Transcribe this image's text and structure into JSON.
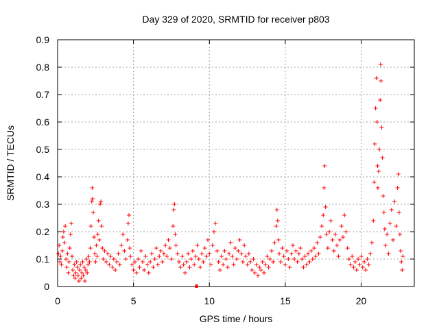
{
  "chart_data": {
    "type": "scatter",
    "title": "Day 329 of 2020, SRMTID for receiver p803",
    "xlabel": "GPS time / hours",
    "ylabel": "SRMTID / TECUs",
    "xlim": [
      0,
      23.5
    ],
    "ylim": [
      0,
      0.9
    ],
    "xticks": [
      0,
      5,
      10,
      15,
      20
    ],
    "xtick_labels": [
      "0",
      "5",
      "10",
      "15",
      "20"
    ],
    "yticks": [
      0,
      0.1,
      0.2,
      0.3,
      0.4,
      0.5,
      0.6,
      0.7,
      0.8,
      0.9
    ],
    "ytick_labels": [
      "0",
      "0.1",
      "0.2",
      "0.3",
      "0.4",
      "0.5",
      "0.6",
      "0.7",
      "0.8",
      "0.9"
    ],
    "grid": true,
    "series_color": "#ff0000",
    "marker": "+",
    "series": [
      {
        "name": "SRMTID",
        "points": [
          [
            0.05,
            0.12
          ],
          [
            0.1,
            0.15
          ],
          [
            0.15,
            0.09
          ],
          [
            0.2,
            0.11
          ],
          [
            0.25,
            0.08
          ],
          [
            0.3,
            0.13
          ],
          [
            0.35,
            0.18
          ],
          [
            0.4,
            0.2
          ],
          [
            0.45,
            0.16
          ],
          [
            0.5,
            0.22
          ],
          [
            0.55,
            0.1
          ],
          [
            0.6,
            0.07
          ],
          [
            0.65,
            0.12
          ],
          [
            0.7,
            0.05
          ],
          [
            0.75,
            0.09
          ],
          [
            0.8,
            0.14
          ],
          [
            0.85,
            0.19
          ],
          [
            0.9,
            0.23
          ],
          [
            0.95,
            0.11
          ],
          [
            1.0,
            0.06
          ],
          [
            1.05,
            0.04
          ],
          [
            1.1,
            0.08
          ],
          [
            1.15,
            0.03
          ],
          [
            1.2,
            0.05
          ],
          [
            1.25,
            0.09
          ],
          [
            1.3,
            0.07
          ],
          [
            1.35,
            0.04
          ],
          [
            1.4,
            0.02
          ],
          [
            1.45,
            0.06
          ],
          [
            1.5,
            0.08
          ],
          [
            1.55,
            0.03
          ],
          [
            1.6,
            0.05
          ],
          [
            1.65,
            0.09
          ],
          [
            1.7,
            0.04
          ],
          [
            1.75,
            0.07
          ],
          [
            1.8,
            0.02
          ],
          [
            1.85,
            0.06
          ],
          [
            1.9,
            0.1
          ],
          [
            1.95,
            0.05
          ],
          [
            2.0,
            0.08
          ],
          [
            2.05,
            0.11
          ],
          [
            2.1,
            0.09
          ],
          [
            2.15,
            0.14
          ],
          [
            2.2,
            0.22
          ],
          [
            2.25,
            0.31
          ],
          [
            2.28,
            0.36
          ],
          [
            2.3,
            0.32
          ],
          [
            2.35,
            0.27
          ],
          [
            2.4,
            0.18
          ],
          [
            2.45,
            0.12
          ],
          [
            2.5,
            0.09
          ],
          [
            2.55,
            0.15
          ],
          [
            2.6,
            0.11
          ],
          [
            2.65,
            0.19
          ],
          [
            2.7,
            0.24
          ],
          [
            2.75,
            0.17
          ],
          [
            2.8,
            0.3
          ],
          [
            2.85,
            0.31
          ],
          [
            2.9,
            0.22
          ],
          [
            2.95,
            0.14
          ],
          [
            3.0,
            0.1
          ],
          [
            3.1,
            0.13
          ],
          [
            3.2,
            0.09
          ],
          [
            3.3,
            0.12
          ],
          [
            3.4,
            0.08
          ],
          [
            3.5,
            0.11
          ],
          [
            3.6,
            0.07
          ],
          [
            3.7,
            0.1
          ],
          [
            3.8,
            0.06
          ],
          [
            3.9,
            0.09
          ],
          [
            4.0,
            0.12
          ],
          [
            4.1,
            0.08
          ],
          [
            4.2,
            0.15
          ],
          [
            4.3,
            0.19
          ],
          [
            4.4,
            0.13
          ],
          [
            4.5,
            0.1
          ],
          [
            4.6,
            0.17
          ],
          [
            4.65,
            0.23
          ],
          [
            4.7,
            0.26
          ],
          [
            4.75,
            0.14
          ],
          [
            4.8,
            0.11
          ],
          [
            4.9,
            0.08
          ],
          [
            5.0,
            0.06
          ],
          [
            5.1,
            0.09
          ],
          [
            5.2,
            0.05
          ],
          [
            5.3,
            0.1
          ],
          [
            5.4,
            0.07
          ],
          [
            5.5,
            0.13
          ],
          [
            5.6,
            0.09
          ],
          [
            5.7,
            0.06
          ],
          [
            5.8,
            0.11
          ],
          [
            5.9,
            0.08
          ],
          [
            6.0,
            0.05
          ],
          [
            6.1,
            0.09
          ],
          [
            6.2,
            0.12
          ],
          [
            6.3,
            0.07
          ],
          [
            6.4,
            0.1
          ],
          [
            6.5,
            0.14
          ],
          [
            6.6,
            0.08
          ],
          [
            6.7,
            0.11
          ],
          [
            6.8,
            0.13
          ],
          [
            6.9,
            0.09
          ],
          [
            7.0,
            0.12
          ],
          [
            7.1,
            0.15
          ],
          [
            7.2,
            0.11
          ],
          [
            7.3,
            0.17
          ],
          [
            7.4,
            0.14
          ],
          [
            7.5,
            0.1
          ],
          [
            7.6,
            0.22
          ],
          [
            7.65,
            0.28
          ],
          [
            7.7,
            0.3
          ],
          [
            7.75,
            0.19
          ],
          [
            7.8,
            0.15
          ],
          [
            7.9,
            0.12
          ],
          [
            8.0,
            0.09
          ],
          [
            8.1,
            0.07
          ],
          [
            8.2,
            0.11
          ],
          [
            8.3,
            0.08
          ],
          [
            8.4,
            0.05
          ],
          [
            8.5,
            0.09
          ],
          [
            8.6,
            0.12
          ],
          [
            8.7,
            0.07
          ],
          [
            8.8,
            0.1
          ],
          [
            8.9,
            0.13
          ],
          [
            9.0,
            0.08
          ],
          [
            9.1,
            0.11
          ],
          [
            9.2,
            0.15
          ],
          [
            9.3,
            0.1
          ],
          [
            9.4,
            0.07
          ],
          [
            9.5,
            0.12
          ],
          [
            9.6,
            0.09
          ],
          [
            9.7,
            0.14
          ],
          [
            9.8,
            0.11
          ],
          [
            9.9,
            0.17
          ],
          [
            10.0,
            0.12
          ],
          [
            10.1,
            0.08
          ],
          [
            10.2,
            0.15
          ],
          [
            10.3,
            0.2
          ],
          [
            10.4,
            0.23
          ],
          [
            10.5,
            0.13
          ],
          [
            10.6,
            0.09
          ],
          [
            10.7,
            0.06
          ],
          [
            10.8,
            0.11
          ],
          [
            10.9,
            0.08
          ],
          [
            11.0,
            0.13
          ],
          [
            11.1,
            0.1
          ],
          [
            11.2,
            0.07
          ],
          [
            11.3,
            0.12
          ],
          [
            11.4,
            0.16
          ],
          [
            11.5,
            0.11
          ],
          [
            11.6,
            0.08
          ],
          [
            11.7,
            0.14
          ],
          [
            11.8,
            0.1
          ],
          [
            11.9,
            0.13
          ],
          [
            12.0,
            0.17
          ],
          [
            12.1,
            0.12
          ],
          [
            12.2,
            0.09
          ],
          [
            12.3,
            0.15
          ],
          [
            12.4,
            0.11
          ],
          [
            12.5,
            0.08
          ],
          [
            12.6,
            0.12
          ],
          [
            12.7,
            0.09
          ],
          [
            12.8,
            0.06
          ],
          [
            12.9,
            0.1
          ],
          [
            13.0,
            0.05
          ],
          [
            13.1,
            0.08
          ],
          [
            13.2,
            0.04
          ],
          [
            13.3,
            0.07
          ],
          [
            13.4,
            0.06
          ],
          [
            13.5,
            0.09
          ],
          [
            13.6,
            0.05
          ],
          [
            13.7,
            0.08
          ],
          [
            13.8,
            0.11
          ],
          [
            13.9,
            0.07
          ],
          [
            14.0,
            0.1
          ],
          [
            14.1,
            0.13
          ],
          [
            14.2,
            0.09
          ],
          [
            14.3,
            0.16
          ],
          [
            14.4,
            0.22
          ],
          [
            14.45,
            0.28
          ],
          [
            14.5,
            0.24
          ],
          [
            14.55,
            0.17
          ],
          [
            14.6,
            0.12
          ],
          [
            14.7,
            0.09
          ],
          [
            14.8,
            0.14
          ],
          [
            14.9,
            0.11
          ],
          [
            15.0,
            0.08
          ],
          [
            15.1,
            0.13
          ],
          [
            15.2,
            0.1
          ],
          [
            15.3,
            0.07
          ],
          [
            15.4,
            0.12
          ],
          [
            15.5,
            0.15
          ],
          [
            15.6,
            0.1
          ],
          [
            15.7,
            0.13
          ],
          [
            15.8,
            0.09
          ],
          [
            15.9,
            0.12
          ],
          [
            16.0,
            0.14
          ],
          [
            16.1,
            0.1
          ],
          [
            16.2,
            0.07
          ],
          [
            16.3,
            0.11
          ],
          [
            16.4,
            0.08
          ],
          [
            16.5,
            0.12
          ],
          [
            16.6,
            0.09
          ],
          [
            16.7,
            0.13
          ],
          [
            16.8,
            0.1
          ],
          [
            16.9,
            0.14
          ],
          [
            17.0,
            0.11
          ],
          [
            17.1,
            0.16
          ],
          [
            17.2,
            0.12
          ],
          [
            17.3,
            0.18
          ],
          [
            17.4,
            0.22
          ],
          [
            17.5,
            0.26
          ],
          [
            17.55,
            0.36
          ],
          [
            17.6,
            0.44
          ],
          [
            17.65,
            0.29
          ],
          [
            17.7,
            0.19
          ],
          [
            17.8,
            0.14
          ],
          [
            17.9,
            0.2
          ],
          [
            18.0,
            0.24
          ],
          [
            18.1,
            0.17
          ],
          [
            18.2,
            0.13
          ],
          [
            18.3,
            0.19
          ],
          [
            18.4,
            0.15
          ],
          [
            18.5,
            0.11
          ],
          [
            18.6,
            0.17
          ],
          [
            18.7,
            0.22
          ],
          [
            18.8,
            0.18
          ],
          [
            18.9,
            0.26
          ],
          [
            19.0,
            0.2
          ],
          [
            19.1,
            0.14
          ],
          [
            19.2,
            0.1
          ],
          [
            19.3,
            0.08
          ],
          [
            19.4,
            0.11
          ],
          [
            19.5,
            0.07
          ],
          [
            19.6,
            0.09
          ],
          [
            19.7,
            0.06
          ],
          [
            19.8,
            0.1
          ],
          [
            19.9,
            0.08
          ],
          [
            20.0,
            0.11
          ],
          [
            20.1,
            0.07
          ],
          [
            20.2,
            0.09
          ],
          [
            20.3,
            0.06
          ],
          [
            20.4,
            0.1
          ],
          [
            20.5,
            0.08
          ],
          [
            20.6,
            0.12
          ],
          [
            20.7,
            0.16
          ],
          [
            20.8,
            0.24
          ],
          [
            20.85,
            0.38
          ],
          [
            20.9,
            0.52
          ],
          [
            20.95,
            0.65
          ],
          [
            21.0,
            0.76
          ],
          [
            21.05,
            0.6
          ],
          [
            21.08,
            0.44
          ],
          [
            21.1,
            0.36
          ],
          [
            21.15,
            0.42
          ],
          [
            21.2,
            0.5
          ],
          [
            21.25,
            0.68
          ],
          [
            21.28,
            0.81
          ],
          [
            21.3,
            0.75
          ],
          [
            21.35,
            0.58
          ],
          [
            21.4,
            0.47
          ],
          [
            21.45,
            0.33
          ],
          [
            21.5,
            0.27
          ],
          [
            21.55,
            0.21
          ],
          [
            21.6,
            0.15
          ],
          [
            21.7,
            0.19
          ],
          [
            21.8,
            0.12
          ],
          [
            21.9,
            0.23
          ],
          [
            22.0,
            0.28
          ],
          [
            22.1,
            0.17
          ],
          [
            22.2,
            0.31
          ],
          [
            22.3,
            0.22
          ],
          [
            22.4,
            0.36
          ],
          [
            22.45,
            0.41
          ],
          [
            22.5,
            0.27
          ],
          [
            22.55,
            0.19
          ],
          [
            22.6,
            0.13
          ],
          [
            22.65,
            0.09
          ],
          [
            22.7,
            0.06
          ],
          [
            22.75,
            0.11
          ]
        ]
      }
    ],
    "extra_marks": [
      {
        "name": "x-axis-square-marker",
        "x": 9.15,
        "y": 0,
        "shape": "square"
      }
    ]
  }
}
